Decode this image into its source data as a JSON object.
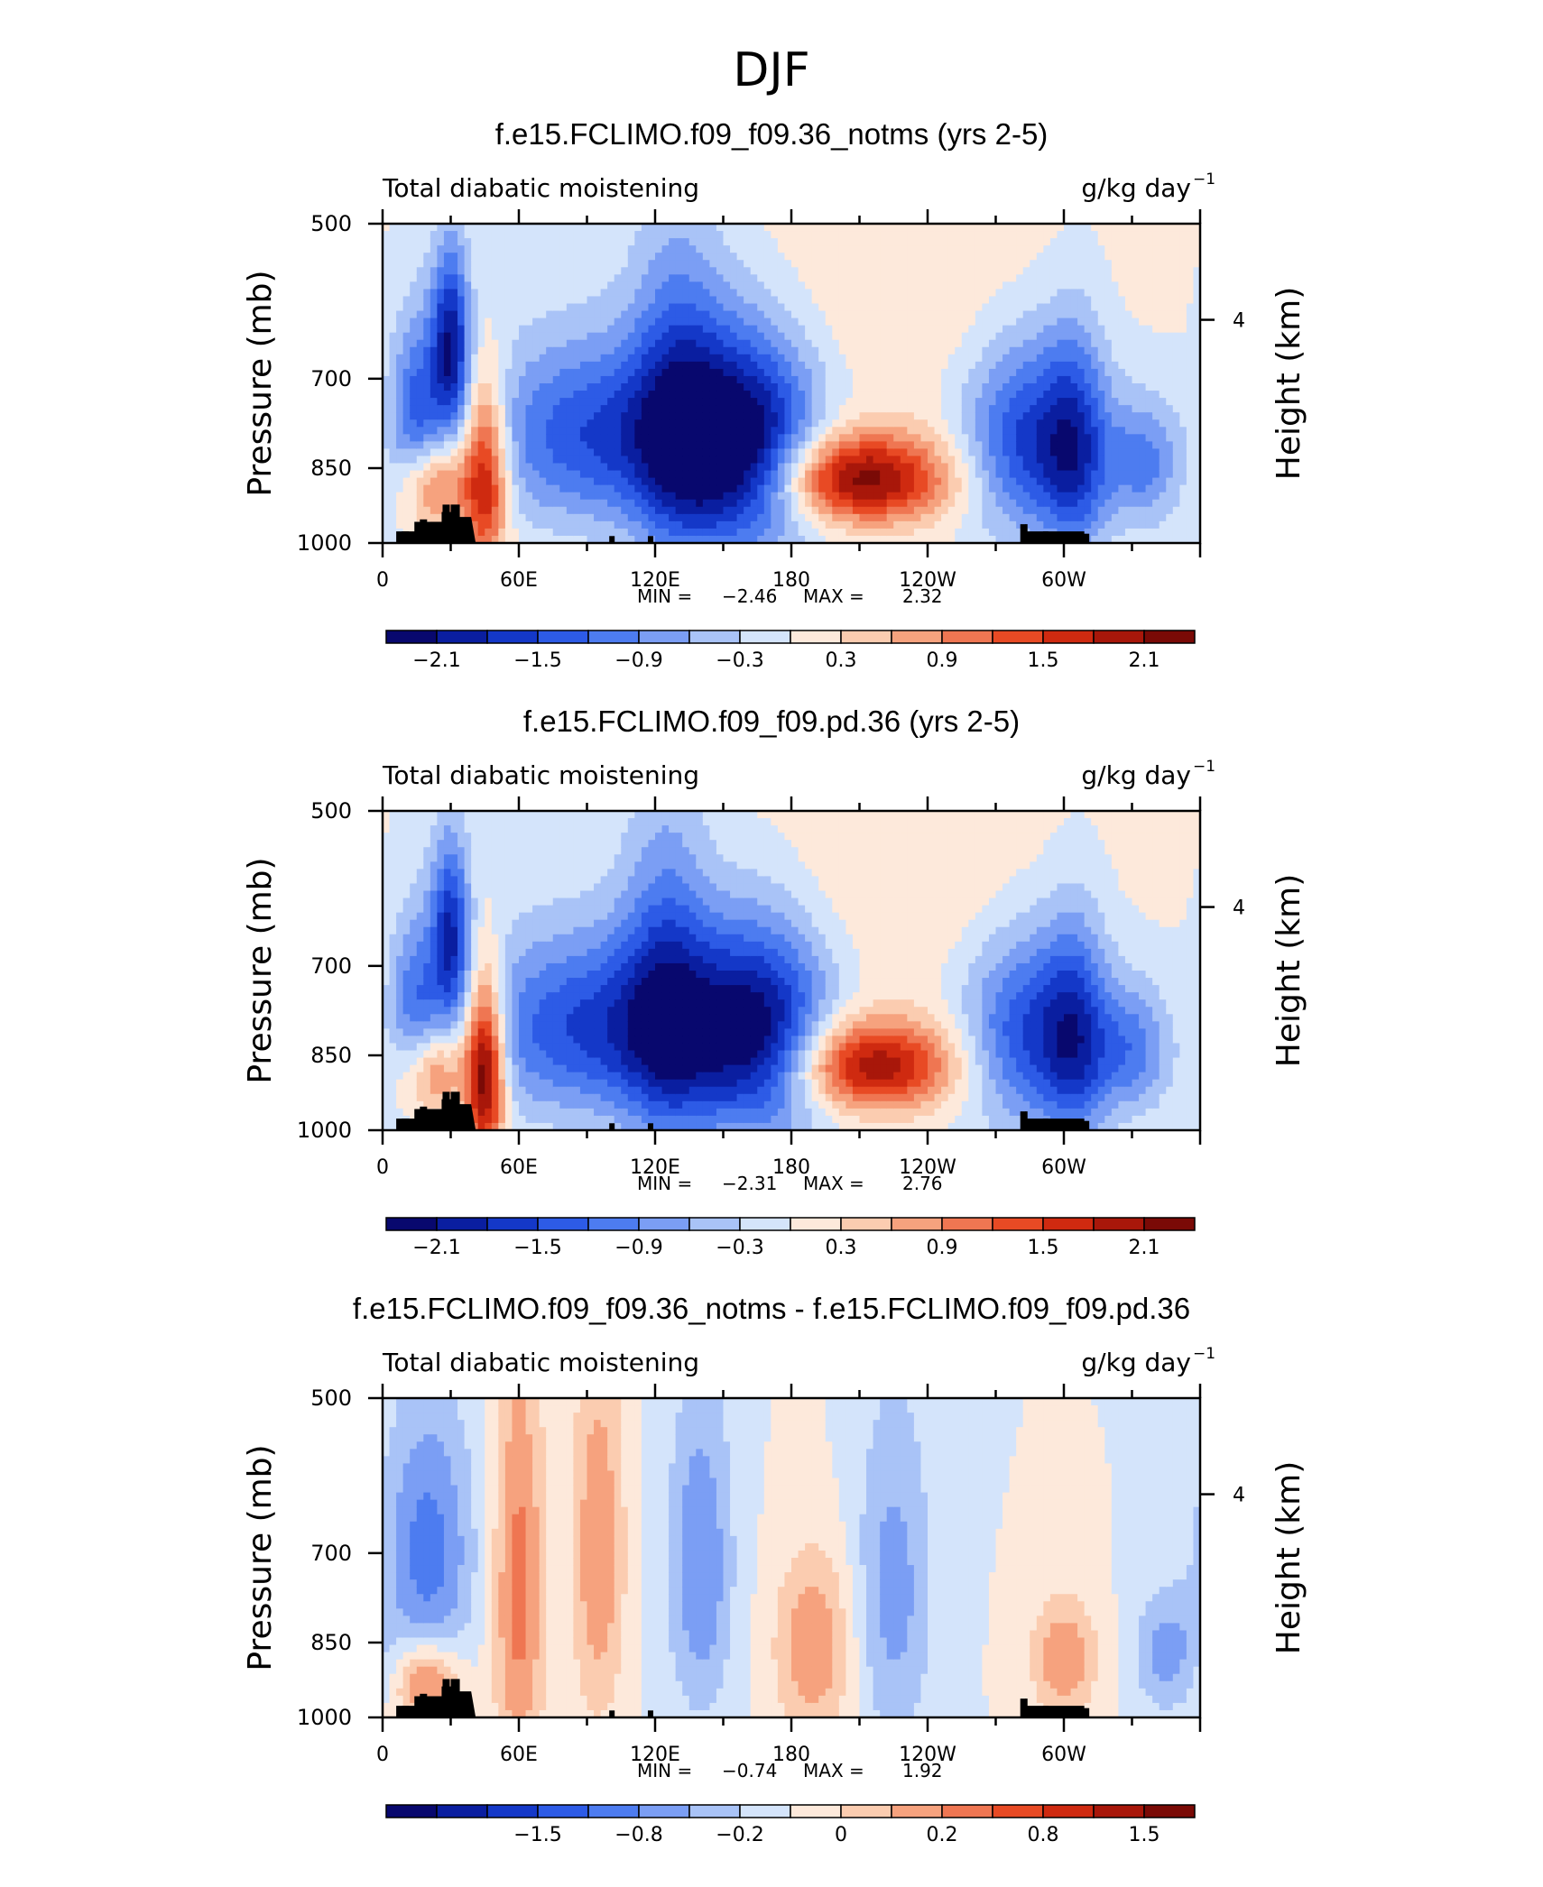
{
  "figure": {
    "title": "DJF"
  },
  "chart_data": [
    {
      "type": "heatmap",
      "title": "f.e15.FCLIMO.f09_f09.36_notms (yrs 2-5)",
      "left_string": "Total diabatic moistening",
      "right_string": "g/kg day",
      "units_exponent": "−1",
      "ylabel": "Pressure (mb)",
      "ylabel_right": "Height (km)",
      "x_ticks": [
        "0",
        "60E",
        "120E",
        "180",
        "120W",
        "60W"
      ],
      "y_ticks": [
        "500",
        "700",
        "850",
        "1000"
      ],
      "y_right_ticks": [
        "4"
      ],
      "ylim": [
        1000,
        500
      ],
      "xlim": [
        0,
        360
      ],
      "stats": {
        "min_label": "MIN =",
        "min": "−2.46",
        "max_label": "MAX =",
        "max": "2.32"
      },
      "colorbar": {
        "labels": [
          "−2.1",
          "−1.5",
          "−0.9",
          "−0.3",
          "0.3",
          "0.9",
          "1.5",
          "2.1"
        ],
        "colors": [
          "#08086e",
          "#0a1ea0",
          "#1438c8",
          "#2d5be6",
          "#4d7cf0",
          "#7b9ef4",
          "#a9c3f7",
          "#d4e4fb",
          "#fde9db",
          "#fbccb0",
          "#f6a27e",
          "#ef7652",
          "#e84a24",
          "#cf2a10",
          "#a8170a",
          "#7a0a06"
        ]
      },
      "field": {
        "features": [
          {
            "lon": 15,
            "p": 760,
            "amp": -1.3,
            "wx": 8,
            "wp": 110
          },
          {
            "lon": 30,
            "p": 650,
            "amp": -2.0,
            "wx": 6,
            "wp": 90
          },
          {
            "lon": 22,
            "p": 880,
            "amp": 1.4,
            "wx": 10,
            "wp": 60
          },
          {
            "lon": 45,
            "p": 870,
            "amp": 2.0,
            "wx": 7,
            "wp": 120
          },
          {
            "lon": 95,
            "p": 790,
            "amp": -1.5,
            "wx": 35,
            "wp": 110
          },
          {
            "lon": 130,
            "p": 760,
            "amp": -1.2,
            "wx": 15,
            "wp": 200
          },
          {
            "lon": 160,
            "p": 810,
            "amp": -2.4,
            "wx": 22,
            "wp": 130
          },
          {
            "lon": 210,
            "p": 870,
            "amp": 2.3,
            "wx": 28,
            "wp": 60
          },
          {
            "lon": 285,
            "p": 800,
            "amp": -1.6,
            "wx": 20,
            "wp": 120
          },
          {
            "lon": 305,
            "p": 820,
            "amp": -1.2,
            "wx": 10,
            "wp": 140
          },
          {
            "lon": 335,
            "p": 840,
            "amp": -1.0,
            "wx": 12,
            "wp": 80
          },
          {
            "lon": 230,
            "p": 560,
            "amp": 0.3,
            "wx": 60,
            "wp": 120
          }
        ]
      },
      "topography": [
        [
          10,
          975
        ],
        [
          18,
          950
        ],
        [
          28,
          920
        ],
        [
          35,
          950
        ],
        [
          42,
          1000
        ],
        [
          101,
          985
        ],
        [
          118,
          985
        ],
        [
          282,
          960
        ],
        [
          292,
          975
        ],
        [
          310,
          980
        ]
      ]
    },
    {
      "type": "heatmap",
      "title": "f.e15.FCLIMO.f09_f09.pd.36 (yrs 2-5)",
      "left_string": "Total diabatic moistening",
      "right_string": "g/kg day",
      "units_exponent": "−1",
      "ylabel": "Pressure (mb)",
      "ylabel_right": "Height (km)",
      "x_ticks": [
        "0",
        "60E",
        "120E",
        "180",
        "120W",
        "60W"
      ],
      "y_ticks": [
        "500",
        "700",
        "850",
        "1000"
      ],
      "y_right_ticks": [
        "4"
      ],
      "ylim": [
        1000,
        500
      ],
      "xlim": [
        0,
        360
      ],
      "stats": {
        "min_label": "MIN =",
        "min": "−2.31",
        "max_label": "MAX =",
        "max": "2.76"
      },
      "colorbar": {
        "labels": [
          "−2.1",
          "−1.5",
          "−0.9",
          "−0.3",
          "0.3",
          "0.9",
          "1.5",
          "2.1"
        ],
        "colors": [
          "#08086e",
          "#0a1ea0",
          "#1438c8",
          "#2d5be6",
          "#4d7cf0",
          "#7b9ef4",
          "#a9c3f7",
          "#d4e4fb",
          "#fde9db",
          "#fbccb0",
          "#f6a27e",
          "#ef7652",
          "#e84a24",
          "#cf2a10",
          "#a8170a",
          "#7a0a06"
        ]
      },
      "field": {
        "features": [
          {
            "lon": 15,
            "p": 770,
            "amp": -1.1,
            "wx": 8,
            "wp": 110
          },
          {
            "lon": 30,
            "p": 650,
            "amp": -1.7,
            "wx": 6,
            "wp": 90
          },
          {
            "lon": 22,
            "p": 880,
            "amp": 1.3,
            "wx": 10,
            "wp": 60
          },
          {
            "lon": 45,
            "p": 880,
            "amp": 2.6,
            "wx": 6,
            "wp": 120
          },
          {
            "lon": 95,
            "p": 800,
            "amp": -1.6,
            "wx": 38,
            "wp": 110
          },
          {
            "lon": 125,
            "p": 760,
            "amp": -1.2,
            "wx": 14,
            "wp": 200
          },
          {
            "lon": 165,
            "p": 810,
            "amp": -2.2,
            "wx": 22,
            "wp": 130
          },
          {
            "lon": 215,
            "p": 870,
            "amp": 2.1,
            "wx": 26,
            "wp": 60
          },
          {
            "lon": 285,
            "p": 810,
            "amp": -1.5,
            "wx": 20,
            "wp": 120
          },
          {
            "lon": 305,
            "p": 820,
            "amp": -1.2,
            "wx": 10,
            "wp": 140
          },
          {
            "lon": 330,
            "p": 840,
            "amp": -1.0,
            "wx": 12,
            "wp": 80
          },
          {
            "lon": 230,
            "p": 560,
            "amp": 0.3,
            "wx": 60,
            "wp": 120
          }
        ]
      },
      "topography": [
        [
          10,
          975
        ],
        [
          18,
          950
        ],
        [
          28,
          920
        ],
        [
          35,
          950
        ],
        [
          42,
          1000
        ],
        [
          101,
          985
        ],
        [
          118,
          985
        ],
        [
          282,
          960
        ],
        [
          292,
          975
        ],
        [
          310,
          980
        ]
      ]
    },
    {
      "type": "heatmap",
      "title": "f.e15.FCLIMO.f09_f09.36_notms - f.e15.FCLIMO.f09_f09.pd.36",
      "left_string": "Total diabatic moistening",
      "right_string": "g/kg day",
      "units_exponent": "−1",
      "ylabel": "Pressure (mb)",
      "ylabel_right": "Height (km)",
      "x_ticks": [
        "0",
        "60E",
        "120E",
        "180",
        "120W",
        "60W"
      ],
      "y_ticks": [
        "500",
        "700",
        "850",
        "1000"
      ],
      "y_right_ticks": [
        "4"
      ],
      "ylim": [
        1000,
        500
      ],
      "xlim": [
        0,
        360
      ],
      "stats": {
        "min_label": "MIN =",
        "min": "−0.74",
        "max_label": "MAX =",
        "max": "1.92"
      },
      "colorbar": {
        "labels": [
          "−1.5",
          "−0.8",
          "−0.2",
          "0",
          "0.2",
          "0.8",
          "1.5"
        ],
        "colors": [
          "#08086e",
          "#0a1ea0",
          "#1438c8",
          "#2d5be6",
          "#4d7cf0",
          "#7b9ef4",
          "#a9c3f7",
          "#d4e4fb",
          "#fde9db",
          "#fbccb0",
          "#f6a27e",
          "#ef7652",
          "#e84a24",
          "#cf2a10",
          "#a8170a",
          "#7a0a06"
        ]
      },
      "field": {
        "features": [
          {
            "lon": 20,
            "p": 700,
            "amp": -0.7,
            "wx": 14,
            "wp": 150
          },
          {
            "lon": 20,
            "p": 930,
            "amp": 0.8,
            "wx": 10,
            "wp": 60
          },
          {
            "lon": 60,
            "p": 760,
            "amp": 0.7,
            "wx": 8,
            "wp": 250
          },
          {
            "lon": 95,
            "p": 700,
            "amp": 0.6,
            "wx": 8,
            "wp": 200
          },
          {
            "lon": 140,
            "p": 720,
            "amp": -0.6,
            "wx": 10,
            "wp": 180
          },
          {
            "lon": 190,
            "p": 860,
            "amp": 0.6,
            "wx": 12,
            "wp": 120
          },
          {
            "lon": 225,
            "p": 760,
            "amp": -0.5,
            "wx": 12,
            "wp": 200
          },
          {
            "lon": 300,
            "p": 880,
            "amp": 0.6,
            "wx": 10,
            "wp": 80
          },
          {
            "lon": 345,
            "p": 870,
            "amp": -0.5,
            "wx": 10,
            "wp": 80
          }
        ]
      },
      "topography": [
        [
          10,
          975
        ],
        [
          18,
          950
        ],
        [
          28,
          920
        ],
        [
          35,
          950
        ],
        [
          42,
          1000
        ],
        [
          101,
          985
        ],
        [
          118,
          985
        ],
        [
          282,
          960
        ],
        [
          292,
          975
        ],
        [
          310,
          980
        ]
      ]
    }
  ]
}
